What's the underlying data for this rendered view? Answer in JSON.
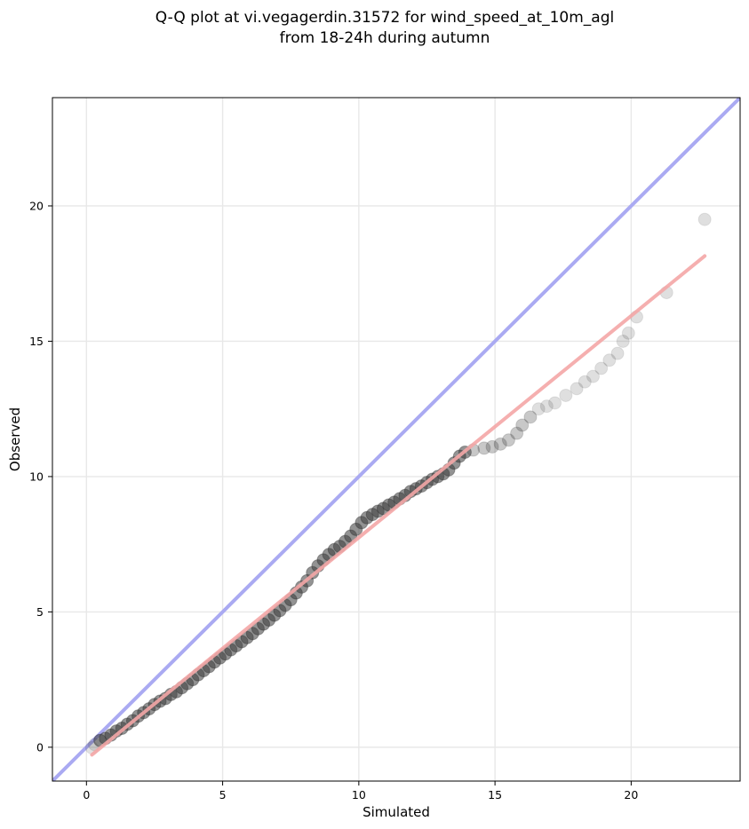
{
  "chart_data": {
    "type": "scatter",
    "title_lines": [
      "Q-Q plot at vi.vegagerdin.31572 for wind_speed_at_10m_agl",
      "from 18-24h during autumn"
    ],
    "xlabel": "Simulated",
    "ylabel": "Observed",
    "xlim": [
      -1.25,
      24.0
    ],
    "ylim": [
      -1.25,
      24.0
    ],
    "xticks": [
      0,
      5,
      10,
      15,
      20
    ],
    "yticks": [
      0,
      5,
      10,
      15,
      20
    ],
    "grid": true,
    "identity_line": {
      "color": "#aaaaf2"
    },
    "fit_line": {
      "color": "#f4a7a7",
      "from": [
        0.2,
        -0.28
      ],
      "to": [
        22.7,
        18.15
      ]
    },
    "points": [
      [
        0.2,
        -0.02
      ],
      [
        0.3,
        0.1
      ],
      [
        0.5,
        0.25
      ],
      [
        0.7,
        0.33
      ],
      [
        0.9,
        0.45
      ],
      [
        1.1,
        0.6
      ],
      [
        1.3,
        0.7
      ],
      [
        1.5,
        0.85
      ],
      [
        1.7,
        0.98
      ],
      [
        1.9,
        1.15
      ],
      [
        2.1,
        1.28
      ],
      [
        2.3,
        1.42
      ],
      [
        2.5,
        1.58
      ],
      [
        2.7,
        1.7
      ],
      [
        2.9,
        1.8
      ],
      [
        3.1,
        1.95
      ],
      [
        3.3,
        2.05
      ],
      [
        3.5,
        2.2
      ],
      [
        3.7,
        2.35
      ],
      [
        3.9,
        2.5
      ],
      [
        4.1,
        2.68
      ],
      [
        4.3,
        2.83
      ],
      [
        4.5,
        2.98
      ],
      [
        4.7,
        3.15
      ],
      [
        4.9,
        3.3
      ],
      [
        5.1,
        3.45
      ],
      [
        5.3,
        3.6
      ],
      [
        5.5,
        3.75
      ],
      [
        5.7,
        3.9
      ],
      [
        5.9,
        4.05
      ],
      [
        6.1,
        4.2
      ],
      [
        6.3,
        4.38
      ],
      [
        6.5,
        4.55
      ],
      [
        6.7,
        4.7
      ],
      [
        6.9,
        4.88
      ],
      [
        7.1,
        5.05
      ],
      [
        7.3,
        5.25
      ],
      [
        7.5,
        5.45
      ],
      [
        7.7,
        5.7
      ],
      [
        7.9,
        5.92
      ],
      [
        8.1,
        6.15
      ],
      [
        8.3,
        6.45
      ],
      [
        8.5,
        6.7
      ],
      [
        8.7,
        6.92
      ],
      [
        8.9,
        7.12
      ],
      [
        9.1,
        7.3
      ],
      [
        9.3,
        7.42
      ],
      [
        9.5,
        7.6
      ],
      [
        9.7,
        7.8
      ],
      [
        9.9,
        8.05
      ],
      [
        10.1,
        8.3
      ],
      [
        10.3,
        8.48
      ],
      [
        10.5,
        8.6
      ],
      [
        10.7,
        8.72
      ],
      [
        10.9,
        8.82
      ],
      [
        11.1,
        8.95
      ],
      [
        11.3,
        9.05
      ],
      [
        11.5,
        9.18
      ],
      [
        11.7,
        9.3
      ],
      [
        11.9,
        9.45
      ],
      [
        12.1,
        9.55
      ],
      [
        12.3,
        9.65
      ],
      [
        12.5,
        9.78
      ],
      [
        12.7,
        9.9
      ],
      [
        12.9,
        10.0
      ],
      [
        13.1,
        10.1
      ],
      [
        13.3,
        10.25
      ],
      [
        13.5,
        10.5
      ],
      [
        13.7,
        10.75
      ],
      [
        13.9,
        10.9
      ],
      [
        14.2,
        10.98
      ],
      [
        14.6,
        11.05
      ],
      [
        14.9,
        11.1
      ],
      [
        15.2,
        11.2
      ],
      [
        15.5,
        11.35
      ],
      [
        15.8,
        11.6
      ],
      [
        16.0,
        11.9
      ],
      [
        16.3,
        12.2
      ],
      [
        16.6,
        12.5
      ],
      [
        16.9,
        12.6
      ],
      [
        17.2,
        12.72
      ],
      [
        17.6,
        13.0
      ],
      [
        18.0,
        13.25
      ],
      [
        18.3,
        13.5
      ],
      [
        18.6,
        13.7
      ],
      [
        18.9,
        14.0
      ],
      [
        19.2,
        14.3
      ],
      [
        19.5,
        14.55
      ],
      [
        19.7,
        15.0
      ],
      [
        19.9,
        15.3
      ],
      [
        20.2,
        15.9
      ],
      [
        21.3,
        16.8
      ],
      [
        22.7,
        19.5
      ]
    ]
  }
}
